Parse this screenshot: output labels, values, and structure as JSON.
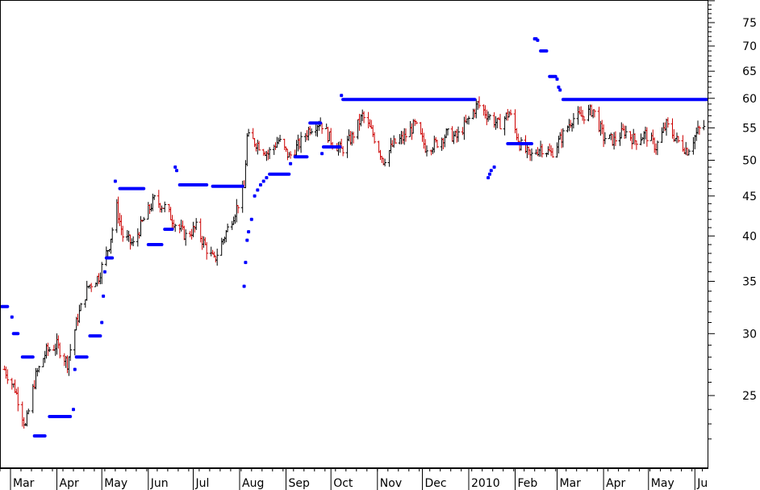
{
  "chart_data": {
    "type": "ohlc",
    "y_scale": "log",
    "ylim": [
      21,
      80
    ],
    "grid": false,
    "legend": "none",
    "y_ticks": [
      25,
      30,
      35,
      40,
      45,
      50,
      55,
      60,
      65,
      70,
      75
    ],
    "month_labels": [
      "Mar",
      "Apr",
      "May",
      "Jun",
      "Jul",
      "Aug",
      "Sep",
      "Oct",
      "Nov",
      "Dec",
      "2010",
      "Feb",
      "Mar",
      "Apr",
      "May",
      "Ju"
    ],
    "colors": {
      "up_bar": "#000000",
      "down_bar": "#cc0000",
      "stop_line": "#0000ff",
      "axis": "#000000"
    },
    "price_series": [
      {
        "date": "2009-02-25",
        "close": 27.0
      },
      {
        "date": "2009-03-04",
        "close": 25.5
      },
      {
        "date": "2009-03-11",
        "close": 22.8
      },
      {
        "date": "2009-03-18",
        "close": 26.5
      },
      {
        "date": "2009-03-25",
        "close": 28.5
      },
      {
        "date": "2009-04-01",
        "close": 29.0
      },
      {
        "date": "2009-04-08",
        "close": 27.5
      },
      {
        "date": "2009-04-15",
        "close": 31.5
      },
      {
        "date": "2009-04-22",
        "close": 34.5
      },
      {
        "date": "2009-04-29",
        "close": 35.5
      },
      {
        "date": "2009-05-06",
        "close": 39.0
      },
      {
        "date": "2009-05-11",
        "close": 43.5
      },
      {
        "date": "2009-05-15",
        "close": 40.0
      },
      {
        "date": "2009-05-22",
        "close": 39.0
      },
      {
        "date": "2009-05-29",
        "close": 42.0
      },
      {
        "date": "2009-06-05",
        "close": 44.5
      },
      {
        "date": "2009-06-12",
        "close": 43.5
      },
      {
        "date": "2009-06-19",
        "close": 41.5
      },
      {
        "date": "2009-06-26",
        "close": 40.0
      },
      {
        "date": "2009-07-03",
        "close": 41.0
      },
      {
        "date": "2009-07-10",
        "close": 38.5
      },
      {
        "date": "2009-07-15",
        "close": 37.2
      },
      {
        "date": "2009-07-22",
        "close": 40.0
      },
      {
        "date": "2009-07-29",
        "close": 43.0
      },
      {
        "date": "2009-08-04",
        "close": 46.0
      },
      {
        "date": "2009-08-06",
        "close": 53.5
      },
      {
        "date": "2009-08-13",
        "close": 52.5
      },
      {
        "date": "2009-08-20",
        "close": 51.0
      },
      {
        "date": "2009-08-27",
        "close": 53.0
      },
      {
        "date": "2009-09-03",
        "close": 50.5
      },
      {
        "date": "2009-09-10",
        "close": 52.5
      },
      {
        "date": "2009-09-17",
        "close": 55.0
      },
      {
        "date": "2009-09-24",
        "close": 56.0
      },
      {
        "date": "2009-10-01",
        "close": 53.0
      },
      {
        "date": "2009-10-08",
        "close": 51.5
      },
      {
        "date": "2009-10-15",
        "close": 53.5
      },
      {
        "date": "2009-10-22",
        "close": 57.0
      },
      {
        "date": "2009-10-29",
        "close": 54.0
      },
      {
        "date": "2009-11-05",
        "close": 50.0
      },
      {
        "date": "2009-11-12",
        "close": 52.5
      },
      {
        "date": "2009-11-19",
        "close": 53.5
      },
      {
        "date": "2009-11-26",
        "close": 55.5
      },
      {
        "date": "2009-12-03",
        "close": 52.0
      },
      {
        "date": "2009-12-10",
        "close": 52.5
      },
      {
        "date": "2009-12-17",
        "close": 54.0
      },
      {
        "date": "2009-12-24",
        "close": 53.5
      },
      {
        "date": "2009-12-31",
        "close": 56.0
      },
      {
        "date": "2010-01-07",
        "close": 59.0
      },
      {
        "date": "2010-01-14",
        "close": 57.0
      },
      {
        "date": "2010-01-21",
        "close": 55.5
      },
      {
        "date": "2010-01-28",
        "close": 57.5
      },
      {
        "date": "2010-02-04",
        "close": 52.5
      },
      {
        "date": "2010-02-11",
        "close": 50.5
      },
      {
        "date": "2010-02-18",
        "close": 52.0
      },
      {
        "date": "2010-02-25",
        "close": 51.0
      },
      {
        "date": "2010-03-04",
        "close": 53.5
      },
      {
        "date": "2010-03-11",
        "close": 56.5
      },
      {
        "date": "2010-03-18",
        "close": 57.0
      },
      {
        "date": "2010-03-25",
        "close": 58.0
      },
      {
        "date": "2010-04-01",
        "close": 53.5
      },
      {
        "date": "2010-04-08",
        "close": 53.0
      },
      {
        "date": "2010-04-15",
        "close": 54.5
      },
      {
        "date": "2010-04-22",
        "close": 53.0
      },
      {
        "date": "2010-04-29",
        "close": 54.0
      },
      {
        "date": "2010-05-06",
        "close": 52.0
      },
      {
        "date": "2010-05-13",
        "close": 55.5
      },
      {
        "date": "2010-05-20",
        "close": 53.0
      },
      {
        "date": "2010-05-27",
        "close": 51.5
      },
      {
        "date": "2010-06-03",
        "close": 54.5
      },
      {
        "date": "2010-06-08",
        "close": 55.5
      }
    ],
    "stop_segments": [
      {
        "start": "2009-02-23",
        "end": "2009-02-27",
        "value": 32.5
      },
      {
        "start": "2009-03-03",
        "end": "2009-03-06",
        "value": 30.0
      },
      {
        "start": "2009-03-09",
        "end": "2009-03-16",
        "value": 28.0
      },
      {
        "start": "2009-03-17",
        "end": "2009-03-24",
        "value": 22.2
      },
      {
        "start": "2009-03-27",
        "end": "2009-04-10",
        "value": 23.5
      },
      {
        "start": "2009-04-14",
        "end": "2009-04-21",
        "value": 28.0
      },
      {
        "start": "2009-04-23",
        "end": "2009-04-30",
        "value": 29.8
      },
      {
        "start": "2009-05-04",
        "end": "2009-05-08",
        "value": 37.5
      },
      {
        "start": "2009-05-13",
        "end": "2009-05-29",
        "value": 46.0
      },
      {
        "start": "2009-06-01",
        "end": "2009-06-10",
        "value": 39.0
      },
      {
        "start": "2009-06-12",
        "end": "2009-06-17",
        "value": 40.8
      },
      {
        "start": "2009-06-22",
        "end": "2009-07-10",
        "value": 46.5
      },
      {
        "start": "2009-07-14",
        "end": "2009-08-03",
        "value": 46.3
      },
      {
        "start": "2009-08-21",
        "end": "2009-09-03",
        "value": 48.0
      },
      {
        "start": "2009-09-07",
        "end": "2009-09-15",
        "value": 50.5
      },
      {
        "start": "2009-09-17",
        "end": "2009-09-24",
        "value": 55.8
      },
      {
        "start": "2009-09-26",
        "end": "2009-10-07",
        "value": 52.0
      },
      {
        "start": "2009-10-09",
        "end": "2010-01-05",
        "value": 59.8
      },
      {
        "start": "2010-01-27",
        "end": "2010-02-12",
        "value": 52.5
      },
      {
        "start": "2010-02-18",
        "end": "2010-02-22",
        "value": 69.0
      },
      {
        "start": "2010-02-24",
        "end": "2010-02-28",
        "value": 64.0
      },
      {
        "start": "2010-03-05",
        "end": "2010-06-09",
        "value": 59.8
      }
    ],
    "stop_dots": [
      {
        "date": "2009-03-02",
        "value": 31.5
      },
      {
        "date": "2009-04-12",
        "value": 24.0
      },
      {
        "date": "2009-04-13",
        "value": 27.0
      },
      {
        "date": "2009-05-01",
        "value": 31.0
      },
      {
        "date": "2009-05-02",
        "value": 33.5
      },
      {
        "date": "2009-05-03",
        "value": 36.0
      },
      {
        "date": "2009-05-10",
        "value": 47.0
      },
      {
        "date": "2009-06-19",
        "value": 49.0
      },
      {
        "date": "2009-06-20",
        "value": 48.5
      },
      {
        "date": "2009-08-04",
        "value": 34.5
      },
      {
        "date": "2009-08-05",
        "value": 37.0
      },
      {
        "date": "2009-08-06",
        "value": 39.5
      },
      {
        "date": "2009-08-07",
        "value": 40.5
      },
      {
        "date": "2009-08-09",
        "value": 42.0
      },
      {
        "date": "2009-08-11",
        "value": 45.0
      },
      {
        "date": "2009-08-13",
        "value": 45.8
      },
      {
        "date": "2009-08-15",
        "value": 46.5
      },
      {
        "date": "2009-08-17",
        "value": 47.0
      },
      {
        "date": "2009-08-19",
        "value": 47.5
      },
      {
        "date": "2009-09-04",
        "value": 49.5
      },
      {
        "date": "2009-09-25",
        "value": 51.0
      },
      {
        "date": "2009-10-08",
        "value": 60.5
      },
      {
        "date": "2010-01-14",
        "value": 47.5
      },
      {
        "date": "2010-01-15",
        "value": 48.0
      },
      {
        "date": "2010-01-16",
        "value": 48.5
      },
      {
        "date": "2010-01-18",
        "value": 49.0
      },
      {
        "date": "2010-02-14",
        "value": 71.5
      },
      {
        "date": "2010-02-15",
        "value": 71.5
      },
      {
        "date": "2010-02-16",
        "value": 71.2
      },
      {
        "date": "2010-03-01",
        "value": 63.5
      },
      {
        "date": "2010-03-02",
        "value": 62.0
      },
      {
        "date": "2010-03-03",
        "value": 61.5
      }
    ]
  }
}
